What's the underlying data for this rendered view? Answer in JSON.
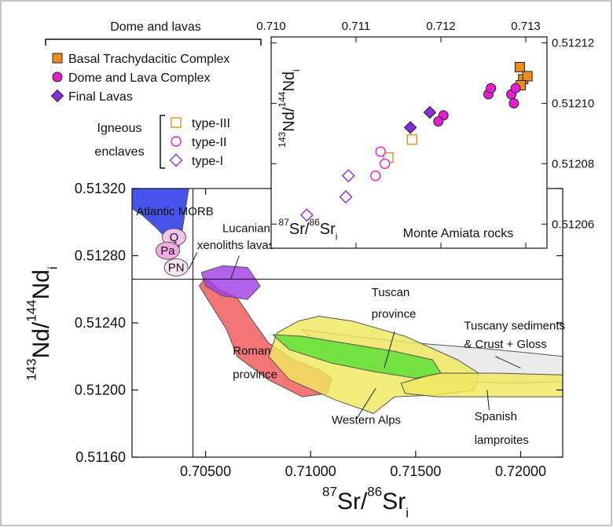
{
  "chart_data": [
    {
      "type": "area",
      "name": "main",
      "xlabel": {
        "pre": "87",
        "mid": "Sr/",
        "pre2": "86",
        "main": "Sr",
        "sub": "i"
      },
      "ylabel": {
        "pre": "143",
        "mid": "Nd/",
        "pre2": "144",
        "main": "Nd",
        "sub": "i"
      },
      "xlim": [
        0.7015,
        0.722
      ],
      "ylim": [
        0.5116,
        0.5132
      ],
      "xticks": [
        0.705,
        0.71,
        0.715,
        0.72
      ],
      "xtick_labels": [
        "0.70500",
        "0.71000",
        "0.71500",
        "0.72000"
      ],
      "yticks": [
        0.5116,
        0.512,
        0.5124,
        0.5128,
        0.5132
      ],
      "ytick_labels": [
        "0.51160",
        "0.51200",
        "0.51240",
        "0.51280",
        "0.51320"
      ],
      "reference_lines": {
        "x": 0.7044,
        "y": 0.51266
      },
      "fields": [
        {
          "label": "Atlantic MORB",
          "color": "#1f2ee6",
          "points": [
            [
              0.7015,
              0.5132
            ],
            [
              0.7042,
              0.5132
            ],
            [
              0.7039,
              0.51296
            ],
            [
              0.7037,
              0.51282
            ],
            [
              0.7033,
              0.51288
            ],
            [
              0.7027,
              0.51296
            ],
            [
              0.702,
              0.51304
            ],
            [
              0.7015,
              0.51308
            ]
          ]
        },
        {
          "label": "Roman province",
          "color": "#ef5858",
          "points": [
            [
              0.705,
              0.51267
            ],
            [
              0.7056,
              0.5126
            ],
            [
              0.7065,
              0.51255
            ],
            [
              0.7072,
              0.51242
            ],
            [
              0.708,
              0.51228
            ],
            [
              0.7092,
              0.51218
            ],
            [
              0.7104,
              0.51212
            ],
            [
              0.711,
              0.51207
            ],
            [
              0.7108,
              0.51198
            ],
            [
              0.7096,
              0.51196
            ],
            [
              0.708,
              0.51206
            ],
            [
              0.7065,
              0.5122
            ],
            [
              0.706,
              0.51236
            ],
            [
              0.7052,
              0.51252
            ],
            [
              0.7047,
              0.51262
            ]
          ]
        },
        {
          "label": "Tuscany sediments & Crust + Gloss",
          "color": "#e6e6e6",
          "points": [
            [
              0.7096,
              0.51236
            ],
            [
              0.712,
              0.51232
            ],
            [
              0.715,
              0.51228
            ],
            [
              0.718,
              0.51225
            ],
            [
              0.7205,
              0.51222
            ],
            [
              0.722,
              0.5122
            ],
            [
              0.722,
              0.51205
            ],
            [
              0.72,
              0.51204
            ],
            [
              0.717,
              0.51205
            ],
            [
              0.714,
              0.5121
            ],
            [
              0.711,
              0.5122
            ]
          ]
        },
        {
          "label": "Western Alps",
          "color": "#efe85e",
          "points": [
            [
              0.7094,
              0.51241
            ],
            [
              0.7104,
              0.51244
            ],
            [
              0.712,
              0.51241
            ],
            [
              0.7145,
              0.51232
            ],
            [
              0.717,
              0.51218
            ],
            [
              0.718,
              0.5121
            ],
            [
              0.7178,
              0.512
            ],
            [
              0.716,
              0.51197
            ],
            [
              0.714,
              0.51196
            ],
            [
              0.713,
              0.51186
            ],
            [
              0.7112,
              0.51194
            ],
            [
              0.709,
              0.51206
            ],
            [
              0.708,
              0.5122
            ],
            [
              0.7084,
              0.51234
            ]
          ]
        },
        {
          "label": "Spanish lamproites",
          "color": "#efe85e",
          "points": [
            [
              0.7143,
              0.51204
            ],
            [
              0.716,
              0.5121
            ],
            [
              0.719,
              0.5121
            ],
            [
              0.722,
              0.51209
            ],
            [
              0.722,
              0.51196
            ],
            [
              0.719,
              0.51196
            ],
            [
              0.716,
              0.51196
            ],
            [
              0.7145,
              0.51198
            ]
          ]
        },
        {
          "label": "Tuscan province",
          "color": "#59e035",
          "points": [
            [
              0.7082,
              0.51233
            ],
            [
              0.7096,
              0.51232
            ],
            [
              0.7116,
              0.51228
            ],
            [
              0.714,
              0.51223
            ],
            [
              0.7158,
              0.51218
            ],
            [
              0.7162,
              0.5121
            ],
            [
              0.715,
              0.51207
            ],
            [
              0.713,
              0.51211
            ],
            [
              0.711,
              0.51216
            ],
            [
              0.709,
              0.51224
            ]
          ]
        },
        {
          "label": "Lucanian xenoliths lavas",
          "color": "#a13ee6",
          "points": [
            [
              0.7048,
              0.5127
            ],
            [
              0.7058,
              0.51274
            ],
            [
              0.707,
              0.51273
            ],
            [
              0.7076,
              0.51262
            ],
            [
              0.707,
              0.51254
            ],
            [
              0.7058,
              0.51256
            ],
            [
              0.705,
              0.51262
            ]
          ]
        }
      ],
      "small_fields": [
        {
          "label": "Q",
          "color": "#f5c4ee",
          "center": [
            0.7035,
            0.51291
          ]
        },
        {
          "label": "Pa",
          "color": "#f3a8e8",
          "center": [
            0.7032,
            0.51283
          ]
        },
        {
          "label": "PN",
          "color": "#fbe3f7",
          "center": [
            0.7036,
            0.51273
          ]
        }
      ],
      "annotations": [
        {
          "text": "Atlantic MORB",
          "pos": [
            0.7017,
            0.51304
          ]
        },
        {
          "text": "Lucanian",
          "pos": [
            0.7058,
            0.51294
          ]
        },
        {
          "text": "xenoliths lavas",
          "pos": [
            0.7046,
            0.51284
          ]
        },
        {
          "text": "Roman",
          "pos": [
            0.7063,
            0.51221
          ]
        },
        {
          "text": "province",
          "pos": [
            0.7063,
            0.51207
          ]
        },
        {
          "text": "Tuscan",
          "pos": [
            0.7129,
            0.51256
          ]
        },
        {
          "text": "province",
          "pos": [
            0.7129,
            0.51243
          ]
        },
        {
          "text": "Tuscany sediments",
          "pos": [
            0.7173,
            0.51236
          ]
        },
        {
          "text": "& Crust + Gloss",
          "pos": [
            0.7173,
            0.51225
          ]
        },
        {
          "text": "Western Alps",
          "pos": [
            0.711,
            0.5118
          ]
        },
        {
          "text": "Spanish",
          "pos": [
            0.7178,
            0.51182
          ]
        },
        {
          "text": "lamproites",
          "pos": [
            0.7178,
            0.51168
          ]
        }
      ]
    },
    {
      "type": "scatter",
      "name": "inset",
      "title": "Monte Amiata rocks",
      "xlabel": {
        "pre": "87",
        "mid": "Sr/",
        "pre2": "86",
        "main": "Sr",
        "sub": "i"
      },
      "ylabel": {
        "pre": "143",
        "mid": "Nd/",
        "pre2": "144",
        "main": "Nd",
        "sub": "i"
      },
      "xlim": [
        0.71,
        0.71325
      ],
      "ylim": [
        0.512052,
        0.512122
      ],
      "xticks": [
        0.71,
        0.711,
        0.712,
        0.713
      ],
      "xtick_labels": [
        "0.710",
        "0.711",
        "0.712",
        "0.713"
      ],
      "yticks": [
        0.51206,
        0.51208,
        0.5121,
        0.51212
      ],
      "ytick_labels": [
        "0.51206",
        "0.51208",
        "0.51210",
        "0.51212"
      ],
      "series": [
        {
          "name": "Basal Trachydacitic Complex",
          "marker": "square",
          "filled": true,
          "color": "#f08c1e",
          "points": [
            [
              0.71293,
              0.512112
            ],
            [
              0.71297,
              0.512108
            ],
            [
              0.71302,
              0.512109
            ],
            [
              0.71294,
              0.512106
            ]
          ]
        },
        {
          "name": "Dome and Lava Complex",
          "marker": "circle",
          "filled": true,
          "color": "#e61ed2",
          "points": [
            [
              0.71256,
              0.512103
            ],
            [
              0.71259,
              0.512105
            ],
            [
              0.71283,
              0.512103
            ],
            [
              0.71288,
              0.512105
            ],
            [
              0.71286,
              0.5121
            ],
            [
              0.71203,
              0.512096
            ],
            [
              0.71197,
              0.512094
            ]
          ]
        },
        {
          "name": "Final Lavas",
          "marker": "diamond",
          "filled": true,
          "color": "#8a2be2",
          "points": [
            [
              0.71187,
              0.512097
            ],
            [
              0.71164,
              0.512092
            ]
          ]
        },
        {
          "name": "type-III",
          "marker": "square",
          "filled": false,
          "color": "#f08c1e",
          "points": [
            [
              0.71166,
              0.512088
            ],
            [
              0.71138,
              0.512082
            ]
          ]
        },
        {
          "name": "type-II",
          "marker": "circle",
          "filled": false,
          "color": "#e61ed2",
          "points": [
            [
              0.71129,
              0.512084
            ],
            [
              0.71134,
              0.51208
            ],
            [
              0.71123,
              0.512076
            ]
          ]
        },
        {
          "name": "type-I",
          "marker": "diamond",
          "filled": false,
          "color": "#8a2be2",
          "points": [
            [
              0.71091,
              0.512076
            ],
            [
              0.71088,
              0.512069
            ],
            [
              0.71042,
              0.512063
            ]
          ]
        }
      ]
    }
  ],
  "legend": {
    "title": "Dome and lavas",
    "items": [
      {
        "label": "Basal Trachydacitic Complex",
        "marker": "square",
        "filled": true,
        "color": "#f08c1e"
      },
      {
        "label": "Dome and Lava Complex",
        "marker": "circle",
        "filled": true,
        "color": "#e61ed2"
      },
      {
        "label": "Final Lavas",
        "marker": "diamond",
        "filled": true,
        "color": "#8a2be2"
      }
    ],
    "enclaves_title_1": "Igneous",
    "enclaves_title_2": "enclaves",
    "enclaves": [
      {
        "label": "type-III",
        "marker": "square",
        "filled": false,
        "color": "#f08c1e"
      },
      {
        "label": "type-II",
        "marker": "circle",
        "filled": false,
        "color": "#e61ed2"
      },
      {
        "label": "type-I",
        "marker": "diamond",
        "filled": false,
        "color": "#8a2be2"
      }
    ]
  }
}
